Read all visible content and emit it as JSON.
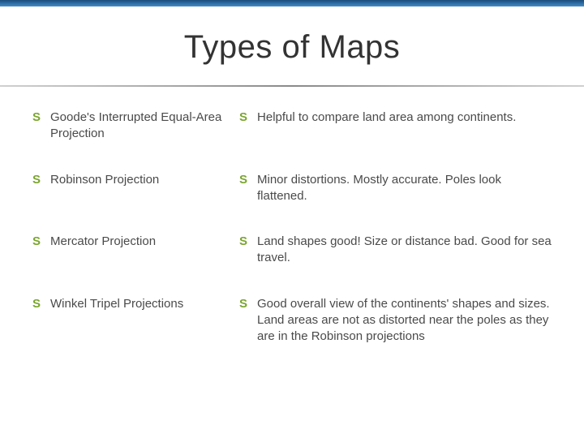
{
  "title": "Types of Maps",
  "colors": {
    "bullet": "#7aa52e",
    "text": "#4a4a4a",
    "title": "#333333",
    "band_gradient": [
      "#1a4d7a",
      "#2a6ca5",
      "#4a8bc2"
    ],
    "underline_gradient": [
      "#d0d0d0",
      "#8a8a8a",
      "#d0d0d0"
    ],
    "background": "#ffffff"
  },
  "typography": {
    "title_fontsize": 40,
    "body_fontsize": 15,
    "font_family": "Arial"
  },
  "rows": [
    {
      "left": "Goode's Interrupted Equal-Area Projection",
      "right": "Helpful to compare land area among continents."
    },
    {
      "left": "Robinson Projection",
      "right": "Minor distortions. Mostly accurate. Poles look flattened."
    },
    {
      "left": "Mercator Projection",
      "right": "Land shapes good! Size or distance bad. Good for sea travel."
    },
    {
      "left": "Winkel Tripel Projections",
      "right": "Good overall view of the continents' shapes and sizes. Land areas are not as distorted near the poles as they are in the Robinson projections"
    }
  ],
  "bullet_glyph": "S"
}
